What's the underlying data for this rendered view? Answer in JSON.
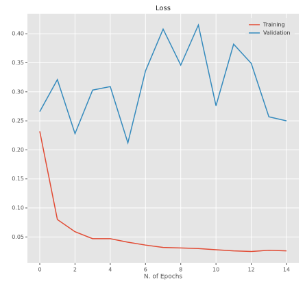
{
  "chart_data": {
    "type": "line",
    "title": "Loss",
    "x_label": "N. of Epochs",
    "x": [
      0,
      1,
      2,
      3,
      4,
      5,
      6,
      7,
      8,
      9,
      10,
      11,
      12,
      13,
      14
    ],
    "series": [
      {
        "name": "Training",
        "color": "#e24a33",
        "values": [
          0.232,
          0.08,
          0.059,
          0.047,
          0.047,
          0.041,
          0.036,
          0.032,
          0.031,
          0.03,
          0.028,
          0.026,
          0.025,
          0.027,
          0.026
        ]
      },
      {
        "name": "Validation",
        "color": "#348abd",
        "values": [
          0.266,
          0.321,
          0.228,
          0.303,
          0.309,
          0.212,
          0.336,
          0.408,
          0.346,
          0.415,
          0.276,
          0.382,
          0.349,
          0.257,
          0.25
        ]
      }
    ],
    "xlim": [
      -0.7,
      14.7
    ],
    "xticks": [
      0,
      2,
      4,
      6,
      8,
      10,
      12,
      14
    ],
    "ylim": [
      0.0055,
      0.4345
    ],
    "yticks": [
      {
        "value": 0.05,
        "label": "0.05"
      },
      {
        "value": 0.1,
        "label": "0.10"
      },
      {
        "value": 0.15,
        "label": "0.15"
      },
      {
        "value": 0.2,
        "label": "0.20"
      },
      {
        "value": 0.25,
        "label": "0.25"
      },
      {
        "value": 0.3,
        "label": "0.30"
      },
      {
        "value": 0.35,
        "label": "0.35"
      },
      {
        "value": 0.4,
        "label": "0.40"
      }
    ],
    "grid": true,
    "legend_position": "upper right"
  }
}
